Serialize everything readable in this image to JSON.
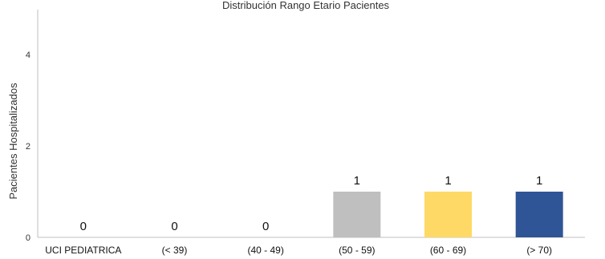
{
  "chart_data": {
    "type": "bar",
    "title": "Distribución Rango Etario Pacientes",
    "xlabel": "",
    "ylabel": "Pacientes Hospitalizados",
    "categories": [
      "UCI PEDIATRICA",
      "(< 39)",
      "(40  -  49)",
      "(50  -  59)",
      "(60  -  69)",
      "(> 70)"
    ],
    "values": [
      0,
      0,
      0,
      1,
      1,
      1
    ],
    "data_labels": [
      "0",
      "0",
      "0",
      "1",
      "1",
      "1"
    ],
    "bar_colors": [
      "#BFBFBF",
      "#BFBFBF",
      "#BFBFBF",
      "#BFBFBF",
      "#FFD966",
      "#2F5597"
    ],
    "ylim": [
      0,
      5
    ],
    "yticks": [
      0,
      2,
      4
    ],
    "grid": false,
    "legend": "none"
  }
}
